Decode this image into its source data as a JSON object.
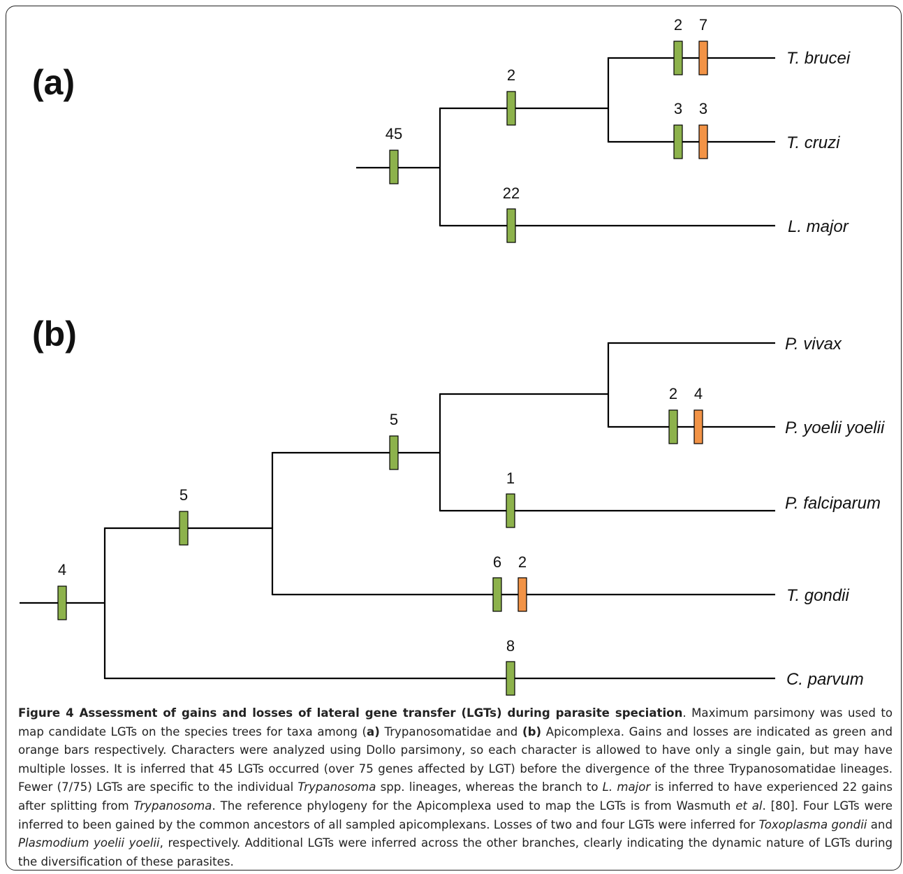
{
  "panels": [
    {
      "label": "(a)"
    },
    {
      "label": "(b)"
    }
  ],
  "colors": {
    "gain": "#8db24c",
    "loss": "#f29346",
    "line": "#000000"
  },
  "tree_a": {
    "taxa": [
      "T. brucei",
      "T. cruzi",
      "L. major"
    ],
    "marks": [
      {
        "branch": "root",
        "type": "gain",
        "count": "45"
      },
      {
        "branch": "Trypanosoma",
        "type": "gain",
        "count": "2"
      },
      {
        "branch": "T. brucei",
        "type": "gain",
        "count": "2"
      },
      {
        "branch": "T. brucei",
        "type": "loss",
        "count": "7"
      },
      {
        "branch": "T. cruzi",
        "type": "gain",
        "count": "3"
      },
      {
        "branch": "T. cruzi",
        "type": "loss",
        "count": "3"
      },
      {
        "branch": "L. major",
        "type": "gain",
        "count": "22"
      }
    ]
  },
  "tree_b": {
    "taxa": [
      "P. vivax",
      "P. yoelii yoelii",
      "P. falciparum",
      "T. gondii",
      "C. parvum"
    ],
    "marks": [
      {
        "branch": "root",
        "type": "gain",
        "count": "4"
      },
      {
        "branch": "Toxoplasma+Plasmodium",
        "type": "gain",
        "count": "5"
      },
      {
        "branch": "Plasmodium",
        "type": "gain",
        "count": "5"
      },
      {
        "branch": "P. yoelii yoelii",
        "type": "gain",
        "count": "2"
      },
      {
        "branch": "P. yoelii yoelii",
        "type": "loss",
        "count": "4"
      },
      {
        "branch": "P. falciparum",
        "type": "gain",
        "count": "1"
      },
      {
        "branch": "T. gondii",
        "type": "gain",
        "count": "6"
      },
      {
        "branch": "T. gondii",
        "type": "loss",
        "count": "2"
      },
      {
        "branch": "C. parvum",
        "type": "gain",
        "count": "8"
      }
    ]
  },
  "caption": {
    "title": "Figure 4 Assessment of gains and losses of lateral gene transfer (LGTs) during parasite speciation",
    "s1": ". Maximum parsimony was used to map candidate LGTs on the species trees for taxa among (",
    "a_label": "a)",
    "s2": " Trypanosomatidae and ",
    "b_label": "(b)",
    "s3": " Apicomplexa. Gains and losses are indicated as green and orange bars respectively. Characters were analyzed using Dollo parsimony, so each character is allowed to have only a single gain, but may have multiple losses. It is inferred that 45 LGTs occurred (over 75 genes affected by LGT) before the divergence of the three Trypanosomatidae lineages. Fewer (7/75) LGTs are specific to the individual ",
    "trypanosoma": "Trypanosoma",
    "s4": " spp. lineages, whereas the branch to ",
    "lmajor": "L. major",
    "s5": " is inferred to have experienced 22 gains after splitting from ",
    "trypanosoma2": "Trypanosoma",
    "s6": ". The reference phylogeny for the Apicomplexa used to map the LGTs is from Wasmuth ",
    "etal": "et al",
    "s7": ". [80]. Four LGTs were inferred to been gained by the common ancestors of all sampled apicomplexans. Losses of two and four LGTs were inferred for ",
    "tgondii": "Toxoplasma gondii",
    "s8": " and ",
    "pyoelii": "Plasmodium yoelii yoelii",
    "s9": ", respectively. Additional LGTs were inferred across the other branches, clearly indicating the dynamic nature of LGTs during the diversification of these parasites."
  }
}
